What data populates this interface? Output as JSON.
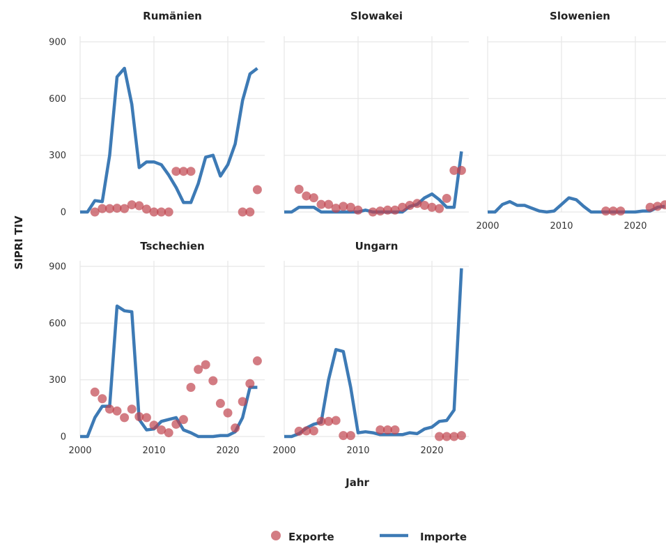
{
  "chart_data": {
    "type": "line",
    "xlabel": "Jahr",
    "ylabel": "SIPRI TIV",
    "xlim": [
      2000,
      2025
    ],
    "ylim": [
      0,
      900
    ],
    "x_ticks": [
      2000,
      2010,
      2020
    ],
    "y_ticks": [
      0,
      300,
      600,
      900
    ],
    "grid": true,
    "legend": {
      "position": "bottom",
      "entries": [
        "Exporte",
        "Importe"
      ]
    },
    "colors": {
      "exporte": "#c0444f",
      "importe": "#3d7ab5"
    },
    "series_styles": {
      "Exporte": "points",
      "Importe": "line"
    },
    "panels": [
      {
        "title": "Rumänien",
        "importe": [
          [
            2000,
            0
          ],
          [
            2001,
            0
          ],
          [
            2002,
            60
          ],
          [
            2003,
            55
          ],
          [
            2004,
            300
          ],
          [
            2005,
            715
          ],
          [
            2006,
            760
          ],
          [
            2007,
            570
          ],
          [
            2008,
            235
          ],
          [
            2009,
            265
          ],
          [
            2010,
            265
          ],
          [
            2011,
            250
          ],
          [
            2012,
            195
          ],
          [
            2013,
            130
          ],
          [
            2014,
            50
          ],
          [
            2015,
            50
          ],
          [
            2016,
            150
          ],
          [
            2017,
            290
          ],
          [
            2018,
            300
          ],
          [
            2019,
            190
          ],
          [
            2020,
            250
          ],
          [
            2021,
            360
          ],
          [
            2022,
            590
          ],
          [
            2023,
            730
          ],
          [
            2024,
            760
          ]
        ],
        "exporte": [
          [
            2002,
            0
          ],
          [
            2003,
            18
          ],
          [
            2004,
            18
          ],
          [
            2005,
            20
          ],
          [
            2006,
            18
          ],
          [
            2007,
            38
          ],
          [
            2008,
            33
          ],
          [
            2009,
            15
          ],
          [
            2010,
            0
          ],
          [
            2011,
            0
          ],
          [
            2012,
            0
          ],
          [
            2013,
            215
          ],
          [
            2014,
            215
          ],
          [
            2015,
            215
          ],
          [
            2022,
            0
          ],
          [
            2023,
            0
          ],
          [
            2024,
            118
          ]
        ]
      },
      {
        "title": "Slowakei",
        "importe": [
          [
            2000,
            0
          ],
          [
            2001,
            0
          ],
          [
            2002,
            25
          ],
          [
            2003,
            25
          ],
          [
            2004,
            25
          ],
          [
            2005,
            0
          ],
          [
            2006,
            0
          ],
          [
            2007,
            0
          ],
          [
            2008,
            0
          ],
          [
            2009,
            0
          ],
          [
            2010,
            0
          ],
          [
            2011,
            10
          ],
          [
            2012,
            0
          ],
          [
            2013,
            0
          ],
          [
            2014,
            0
          ],
          [
            2015,
            0
          ],
          [
            2016,
            0
          ],
          [
            2017,
            30
          ],
          [
            2018,
            40
          ],
          [
            2019,
            75
          ],
          [
            2020,
            95
          ],
          [
            2021,
            65
          ],
          [
            2022,
            25
          ],
          [
            2023,
            25
          ],
          [
            2024,
            320
          ]
        ],
        "exporte": [
          [
            2002,
            120
          ],
          [
            2003,
            85
          ],
          [
            2004,
            75
          ],
          [
            2005,
            40
          ],
          [
            2006,
            40
          ],
          [
            2007,
            20
          ],
          [
            2008,
            30
          ],
          [
            2009,
            25
          ],
          [
            2010,
            10
          ],
          [
            2012,
            0
          ],
          [
            2013,
            5
          ],
          [
            2014,
            10
          ],
          [
            2015,
            10
          ],
          [
            2016,
            25
          ],
          [
            2017,
            35
          ],
          [
            2018,
            45
          ],
          [
            2019,
            35
          ],
          [
            2020,
            25
          ],
          [
            2021,
            18
          ],
          [
            2022,
            72
          ],
          [
            2023,
            220
          ],
          [
            2024,
            220
          ]
        ]
      },
      {
        "title": "Slowenien",
        "importe": [
          [
            2000,
            0
          ],
          [
            2001,
            0
          ],
          [
            2002,
            40
          ],
          [
            2003,
            55
          ],
          [
            2004,
            35
          ],
          [
            2005,
            35
          ],
          [
            2006,
            20
          ],
          [
            2007,
            5
          ],
          [
            2008,
            0
          ],
          [
            2009,
            5
          ],
          [
            2010,
            40
          ],
          [
            2011,
            75
          ],
          [
            2012,
            65
          ],
          [
            2013,
            30
          ],
          [
            2014,
            0
          ],
          [
            2015,
            0
          ],
          [
            2016,
            0
          ],
          [
            2017,
            0
          ],
          [
            2018,
            0
          ],
          [
            2019,
            0
          ],
          [
            2020,
            0
          ],
          [
            2021,
            5
          ],
          [
            2022,
            5
          ],
          [
            2023,
            25
          ],
          [
            2024,
            30
          ]
        ],
        "exporte": [
          [
            2016,
            5
          ],
          [
            2017,
            5
          ],
          [
            2018,
            5
          ],
          [
            2022,
            25
          ],
          [
            2023,
            30
          ],
          [
            2024,
            38
          ]
        ]
      },
      {
        "title": "Tschechien",
        "importe": [
          [
            2000,
            0
          ],
          [
            2001,
            0
          ],
          [
            2002,
            100
          ],
          [
            2003,
            160
          ],
          [
            2004,
            160
          ],
          [
            2005,
            690
          ],
          [
            2006,
            665
          ],
          [
            2007,
            660
          ],
          [
            2008,
            90
          ],
          [
            2009,
            35
          ],
          [
            2010,
            40
          ],
          [
            2011,
            80
          ],
          [
            2012,
            90
          ],
          [
            2013,
            100
          ],
          [
            2014,
            35
          ],
          [
            2015,
            20
          ],
          [
            2016,
            0
          ],
          [
            2017,
            0
          ],
          [
            2018,
            0
          ],
          [
            2019,
            5
          ],
          [
            2020,
            5
          ],
          [
            2021,
            25
          ],
          [
            2022,
            100
          ],
          [
            2023,
            260
          ],
          [
            2024,
            260
          ]
        ],
        "exporte": [
          [
            2002,
            235
          ],
          [
            2003,
            200
          ],
          [
            2004,
            145
          ],
          [
            2005,
            135
          ],
          [
            2006,
            100
          ],
          [
            2007,
            145
          ],
          [
            2008,
            105
          ],
          [
            2009,
            100
          ],
          [
            2010,
            60
          ],
          [
            2011,
            35
          ],
          [
            2012,
            20
          ],
          [
            2013,
            65
          ],
          [
            2014,
            90
          ],
          [
            2015,
            260
          ],
          [
            2016,
            355
          ],
          [
            2017,
            380
          ],
          [
            2018,
            295
          ],
          [
            2019,
            175
          ],
          [
            2020,
            125
          ],
          [
            2021,
            45
          ],
          [
            2022,
            185
          ],
          [
            2023,
            280
          ],
          [
            2024,
            400
          ]
        ]
      },
      {
        "title": "Ungarn",
        "importe": [
          [
            2000,
            0
          ],
          [
            2001,
            0
          ],
          [
            2002,
            15
          ],
          [
            2003,
            45
          ],
          [
            2004,
            65
          ],
          [
            2005,
            75
          ],
          [
            2006,
            300
          ],
          [
            2007,
            460
          ],
          [
            2008,
            450
          ],
          [
            2009,
            260
          ],
          [
            2010,
            20
          ],
          [
            2011,
            25
          ],
          [
            2012,
            20
          ],
          [
            2013,
            10
          ],
          [
            2014,
            10
          ],
          [
            2015,
            10
          ],
          [
            2016,
            10
          ],
          [
            2017,
            20
          ],
          [
            2018,
            15
          ],
          [
            2019,
            40
          ],
          [
            2020,
            50
          ],
          [
            2021,
            80
          ],
          [
            2022,
            85
          ],
          [
            2023,
            140
          ],
          [
            2024,
            890
          ]
        ],
        "exporte": [
          [
            2002,
            28
          ],
          [
            2003,
            30
          ],
          [
            2004,
            30
          ],
          [
            2005,
            80
          ],
          [
            2006,
            80
          ],
          [
            2007,
            85
          ],
          [
            2008,
            5
          ],
          [
            2009,
            5
          ],
          [
            2013,
            35
          ],
          [
            2014,
            35
          ],
          [
            2015,
            35
          ],
          [
            2021,
            0
          ],
          [
            2022,
            0
          ],
          [
            2023,
            0
          ],
          [
            2024,
            5
          ]
        ]
      }
    ]
  }
}
